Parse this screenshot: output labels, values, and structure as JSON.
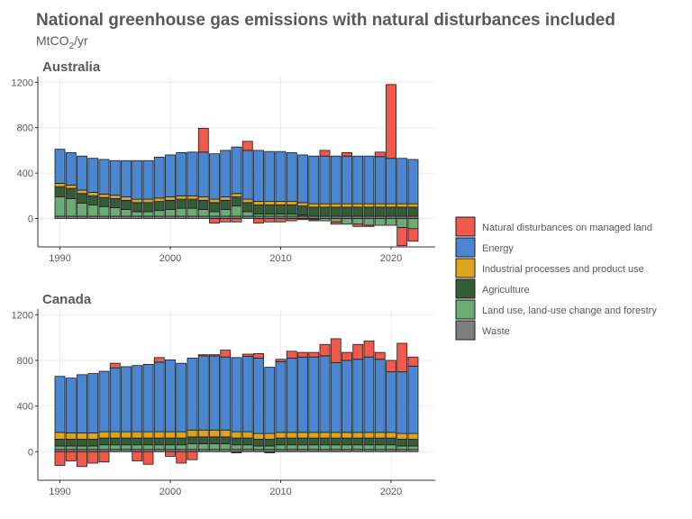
{
  "chart_data": {
    "type": "bar",
    "stacked": true,
    "title": "National greenhouse gas emissions with natural disturbances included",
    "subtitle": "MtCO2/yr",
    "subtitle_parts": [
      "MtCO",
      "2",
      "/yr"
    ],
    "x_ticks": [
      1990,
      2000,
      2010,
      2020
    ],
    "y_ticks": [
      0,
      400,
      800,
      1200
    ],
    "ylim": [
      -250,
      1250
    ],
    "xlim": [
      1988,
      2024
    ],
    "grid": true,
    "legend_position": "right",
    "series_order": [
      "natural_disturbances",
      "energy",
      "industrial",
      "agriculture",
      "lulucf",
      "waste"
    ],
    "series": [
      {
        "key": "natural_disturbances",
        "name": "Natural disturbances on managed land",
        "color": "#f0594b"
      },
      {
        "key": "energy",
        "name": "Energy",
        "color": "#4a87d0"
      },
      {
        "key": "industrial",
        "name": "Industrial processes and product use",
        "color": "#dca51b"
      },
      {
        "key": "agriculture",
        "name": "Agriculture",
        "color": "#355b37"
      },
      {
        "key": "lulucf",
        "name": "Land use, land-use change and forestry",
        "color": "#6aac74"
      },
      {
        "key": "waste",
        "name": "Waste",
        "color": "#7f7f7f"
      }
    ],
    "facets": [
      {
        "name": "Australia",
        "years": [
          1990,
          1991,
          1992,
          1993,
          1994,
          1995,
          1996,
          1997,
          1998,
          1999,
          2000,
          2001,
          2002,
          2003,
          2004,
          2005,
          2006,
          2007,
          2008,
          2009,
          2010,
          2011,
          2012,
          2013,
          2014,
          2015,
          2016,
          2017,
          2018,
          2019,
          2020,
          2021,
          2022
        ],
        "waste": [
          20,
          20,
          20,
          20,
          20,
          20,
          20,
          20,
          20,
          20,
          20,
          20,
          20,
          20,
          20,
          20,
          20,
          20,
          20,
          20,
          20,
          20,
          20,
          20,
          20,
          20,
          20,
          20,
          20,
          20,
          20,
          20,
          20
        ],
        "lulucf": [
          170,
          155,
          115,
          100,
          85,
          75,
          60,
          40,
          40,
          50,
          60,
          70,
          70,
          60,
          40,
          60,
          90,
          40,
          20,
          20,
          20,
          20,
          10,
          -10,
          -20,
          -30,
          -50,
          -50,
          -60,
          -60,
          -60,
          -80,
          -90
        ],
        "agriculture": [
          90,
          90,
          85,
          80,
          80,
          80,
          80,
          80,
          80,
          80,
          80,
          80,
          80,
          80,
          80,
          80,
          80,
          80,
          80,
          80,
          80,
          80,
          80,
          80,
          80,
          80,
          80,
          80,
          80,
          80,
          80,
          80,
          80
        ],
        "industrial": [
          30,
          30,
          30,
          30,
          30,
          30,
          30,
          30,
          30,
          30,
          30,
          30,
          30,
          30,
          30,
          30,
          30,
          30,
          30,
          30,
          30,
          30,
          30,
          30,
          30,
          30,
          30,
          30,
          30,
          30,
          30,
          30,
          30
        ],
        "energy": [
          300,
          285,
          300,
          300,
          305,
          305,
          320,
          340,
          340,
          360,
          370,
          380,
          385,
          395,
          400,
          410,
          410,
          430,
          450,
          440,
          440,
          430,
          420,
          420,
          420,
          420,
          420,
          420,
          420,
          415,
          400,
          400,
          390
        ],
        "natural_disturbances": [
          0,
          0,
          0,
          0,
          0,
          0,
          0,
          0,
          0,
          0,
          0,
          0,
          0,
          210,
          -40,
          -30,
          -30,
          80,
          -40,
          -30,
          -30,
          -20,
          -10,
          -10,
          50,
          -20,
          30,
          -20,
          -10,
          40,
          650,
          -160,
          -110
        ]
      },
      {
        "name": "Canada",
        "years": [
          1990,
          1991,
          1992,
          1993,
          1994,
          1995,
          1996,
          1997,
          1998,
          1999,
          2000,
          2001,
          2002,
          2003,
          2004,
          2005,
          2006,
          2007,
          2008,
          2009,
          2010,
          2011,
          2012,
          2013,
          2014,
          2015,
          2016,
          2017,
          2018,
          2019,
          2020,
          2021,
          2022
        ],
        "waste": [
          20,
          20,
          20,
          20,
          20,
          20,
          20,
          20,
          20,
          20,
          20,
          20,
          20,
          20,
          20,
          20,
          20,
          20,
          20,
          20,
          20,
          20,
          20,
          20,
          20,
          20,
          20,
          20,
          20,
          20,
          20,
          20,
          20
        ],
        "lulucf": [
          30,
          30,
          30,
          30,
          40,
          40,
          40,
          40,
          40,
          40,
          40,
          40,
          50,
          50,
          50,
          50,
          40,
          40,
          30,
          30,
          40,
          40,
          40,
          40,
          40,
          40,
          40,
          40,
          40,
          40,
          40,
          30,
          30
        ],
        "agriculture": [
          60,
          60,
          60,
          60,
          60,
          60,
          60,
          60,
          60,
          60,
          60,
          60,
          60,
          60,
          60,
          60,
          60,
          60,
          60,
          60,
          60,
          60,
          60,
          60,
          60,
          60,
          60,
          60,
          60,
          60,
          60,
          60,
          60
        ],
        "industrial": [
          60,
          55,
          55,
          55,
          55,
          55,
          55,
          55,
          55,
          55,
          55,
          55,
          60,
          60,
          60,
          60,
          55,
          55,
          50,
          50,
          50,
          50,
          50,
          50,
          50,
          50,
          50,
          50,
          50,
          50,
          50,
          50,
          50
        ],
        "energy": [
          490,
          480,
          510,
          520,
          530,
          560,
          570,
          580,
          590,
          610,
          630,
          600,
          630,
          650,
          650,
          640,
          650,
          660,
          660,
          580,
          620,
          650,
          660,
          660,
          670,
          610,
          630,
          640,
          660,
          640,
          530,
          540,
          590
        ],
        "natural_disturbances": [
          -120,
          -80,
          -130,
          -100,
          -90,
          40,
          0,
          -80,
          -110,
          40,
          -40,
          -100,
          -70,
          10,
          10,
          60,
          -10,
          20,
          40,
          -10,
          20,
          60,
          40,
          40,
          100,
          210,
          70,
          130,
          140,
          60,
          100,
          250,
          80
        ]
      }
    ]
  }
}
